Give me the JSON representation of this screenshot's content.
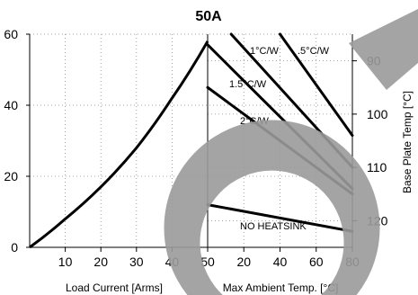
{
  "chart_data": {
    "type": "line",
    "title": "50A",
    "left_panel": {
      "xlabel": "Load Current [Arms]",
      "ylabel": "",
      "x_ticks": [
        "10",
        "20",
        "30",
        "40",
        "50"
      ],
      "y_ticks": [
        "0",
        "20",
        "40",
        "60"
      ],
      "xlim": [
        0,
        50
      ],
      "ylim": [
        0,
        60
      ],
      "series": [
        {
          "x": [
            0,
            10,
            20,
            30,
            40,
            50
          ],
          "y": [
            0,
            8,
            17,
            28,
            42,
            58
          ]
        }
      ]
    },
    "right_panel": {
      "xlabel": "Max Ambient Temp. [°C]",
      "ylabel": "Base Plate Temp [°C]",
      "x_ticks": [
        "20",
        "40",
        "60",
        "80"
      ],
      "y_ticks": [
        "90",
        "100",
        "110",
        "120"
      ],
      "xlim": [
        0,
        80
      ],
      "ylim": [
        85,
        125
      ],
      "series": [
        {
          "name": "1°C/W",
          "x": [
            13,
            80
          ],
          "y": [
            85,
            110
          ]
        },
        {
          "name": ".5°C/W",
          "x": [
            40,
            80
          ],
          "y": [
            85,
            104
          ]
        },
        {
          "name": "1.5°C/W",
          "x": [
            0,
            80
          ],
          "y": [
            87,
            114
          ]
        },
        {
          "name": "2°C/W",
          "x": [
            0,
            80
          ],
          "y": [
            95,
            115
          ]
        },
        {
          "name": "NO HEATSINK",
          "x": [
            0,
            80
          ],
          "y": [
            117,
            122
          ]
        }
      ]
    },
    "grid": true
  }
}
